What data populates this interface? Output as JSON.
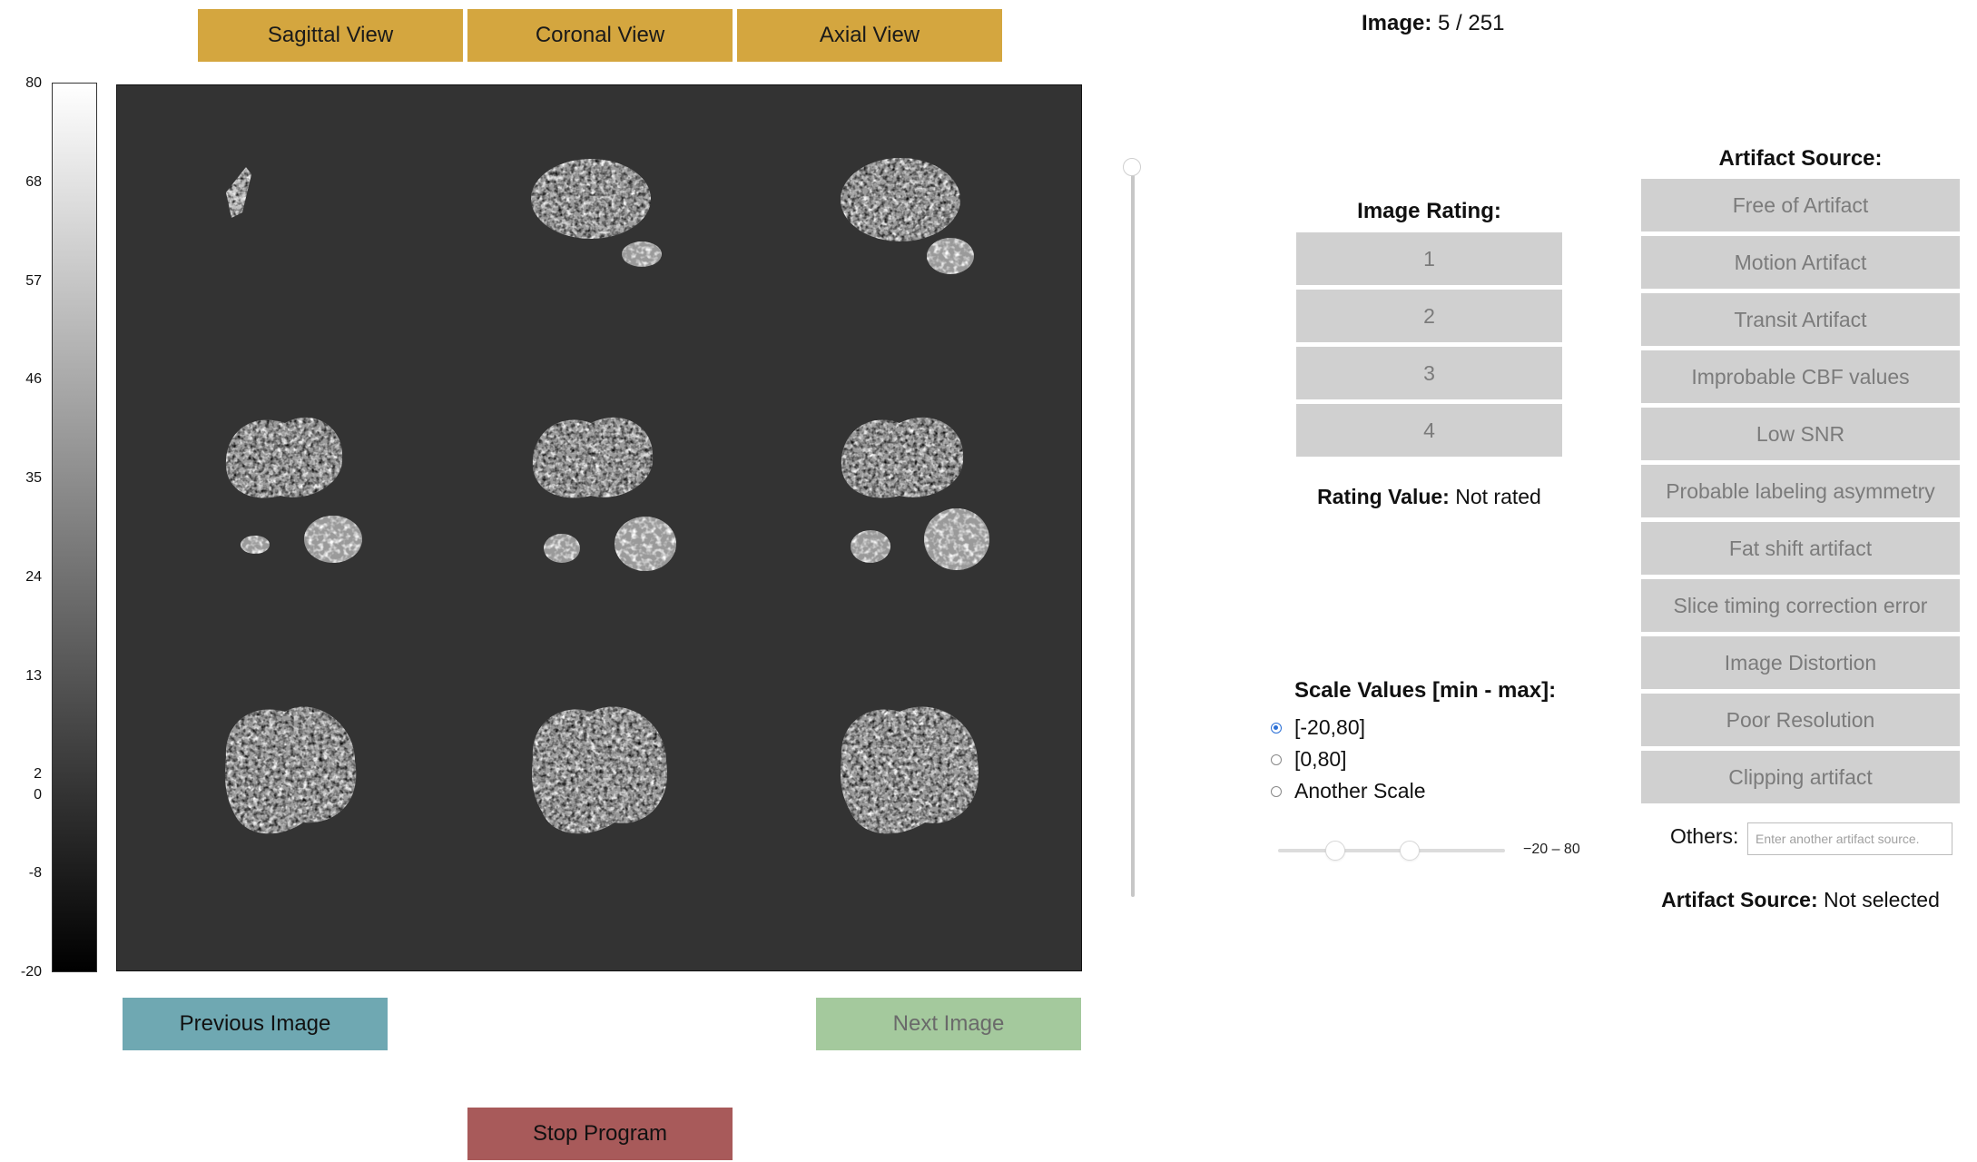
{
  "view_buttons": {
    "sagittal": "Sagittal View",
    "coronal": "Coronal View",
    "axial": "Axial View"
  },
  "colorbar": {
    "ticks": [
      "80",
      "68",
      "57",
      "46",
      "35",
      "24",
      "13",
      "2",
      "0",
      "-8",
      "-20"
    ]
  },
  "navigation": {
    "previous": "Previous Image",
    "next": "Next Image",
    "stop": "Stop Program"
  },
  "counter": {
    "label": "Image:",
    "value": "5 / 251"
  },
  "rating": {
    "title": "Image Rating:",
    "options": [
      "1",
      "2",
      "3",
      "4"
    ],
    "value_label": "Rating Value:",
    "value": "Not rated"
  },
  "scale": {
    "title": "Scale Values [min - max]:",
    "options": [
      "[-20,80]",
      "[0,80]",
      "Another Scale"
    ],
    "selected": "[-20,80]",
    "range_label": "−20 – 80"
  },
  "artifact": {
    "title": "Artifact Source:",
    "options": [
      "Free of Artifact",
      "Motion Artifact",
      "Transit Artifact",
      "Improbable CBF values",
      "Low SNR",
      "Probable labeling asymmetry",
      "Fat shift artifact",
      "Slice timing correction error",
      "Image Distortion",
      "Poor Resolution",
      "Clipping artifact"
    ],
    "others_label": "Others:",
    "others_placeholder": "Enter another artifact source.",
    "selected_label": "Artifact Source:",
    "selected_value": "Not selected"
  },
  "colors": {
    "view_button": "#d4a63f",
    "prev_button": "#6fa8b2",
    "next_button": "#a4c99d",
    "stop_button": "#a85a5a",
    "option_button": "#d0d0d0",
    "panel_bg": "#333333"
  }
}
